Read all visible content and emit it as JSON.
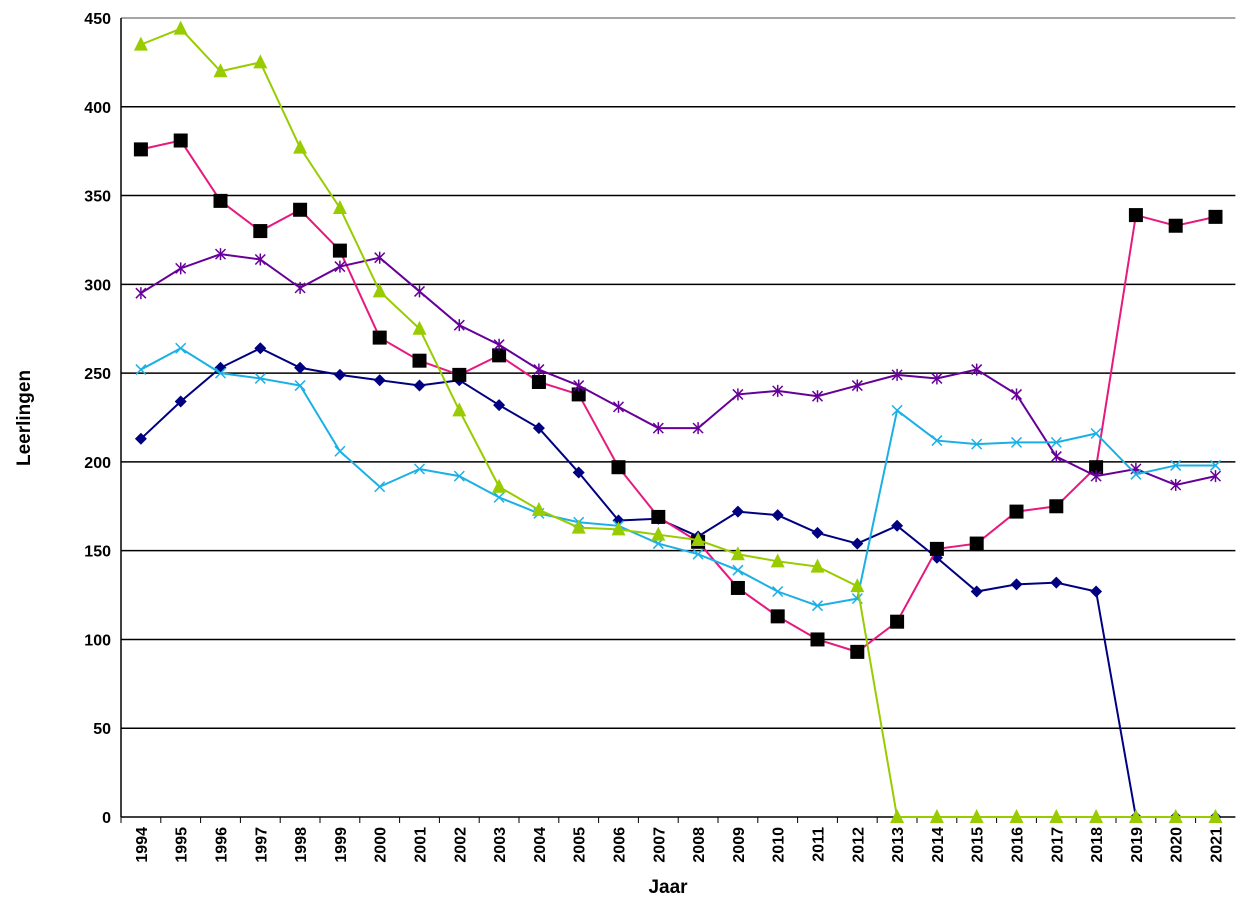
{
  "chart_data": {
    "type": "line",
    "x_label": "Jaar",
    "y_label": "Leerlingen",
    "categories": [
      "1994",
      "1995",
      "1996",
      "1997",
      "1998",
      "1999",
      "2000",
      "2001",
      "2002",
      "2003",
      "2004",
      "2005",
      "2006",
      "2007",
      "2008",
      "2009",
      "2010",
      "2011",
      "2012",
      "2013",
      "2014",
      "2015",
      "2016",
      "2017",
      "2018",
      "2019",
      "2020",
      "2021"
    ],
    "ylim": [
      0,
      450
    ],
    "yticks": [
      0,
      50,
      100,
      150,
      200,
      250,
      300,
      350,
      400,
      450
    ],
    "grid": true,
    "series": [
      {
        "color": "#000080",
        "marker": "diamond",
        "marker_color": "#000080",
        "values": [
          213,
          234,
          253,
          264,
          253,
          249,
          246,
          243,
          246,
          232,
          219,
          194,
          167,
          168,
          158,
          172,
          170,
          160,
          154,
          164,
          146,
          127,
          131,
          132,
          127,
          0,
          0,
          0
        ]
      },
      {
        "color": "#e6197f",
        "marker": "square",
        "marker_color": "#000000",
        "values": [
          376,
          381,
          347,
          330,
          342,
          319,
          270,
          257,
          249,
          260,
          245,
          238,
          197,
          169,
          155,
          129,
          113,
          100,
          93,
          110,
          151,
          154,
          172,
          175,
          197,
          339,
          333,
          338
        ]
      },
      {
        "color": "#660099",
        "marker": "asterisk",
        "marker_color": "#660099",
        "values": [
          295,
          309,
          317,
          314,
          298,
          310,
          315,
          296,
          277,
          266,
          252,
          243,
          231,
          219,
          219,
          238,
          240,
          237,
          243,
          249,
          247,
          252,
          238,
          203,
          192,
          196,
          187,
          192
        ]
      },
      {
        "color": "#1ab0e6",
        "marker": "cross",
        "marker_color": "#1ab0e6",
        "values": [
          252,
          264,
          250,
          247,
          243,
          206,
          186,
          196,
          192,
          180,
          171,
          166,
          164,
          154,
          148,
          139,
          127,
          119,
          123,
          229,
          212,
          210,
          211,
          211,
          216,
          193,
          198,
          198
        ]
      },
      {
        "color": "#99cc00",
        "marker": "triangle",
        "marker_color": "#99cc00",
        "values": [
          435,
          444,
          420,
          425,
          377,
          343,
          296,
          275,
          229,
          186,
          173,
          163,
          162,
          159,
          156,
          148,
          144,
          141,
          130,
          0,
          0,
          0,
          0,
          0,
          0,
          0,
          0,
          0
        ]
      }
    ]
  }
}
